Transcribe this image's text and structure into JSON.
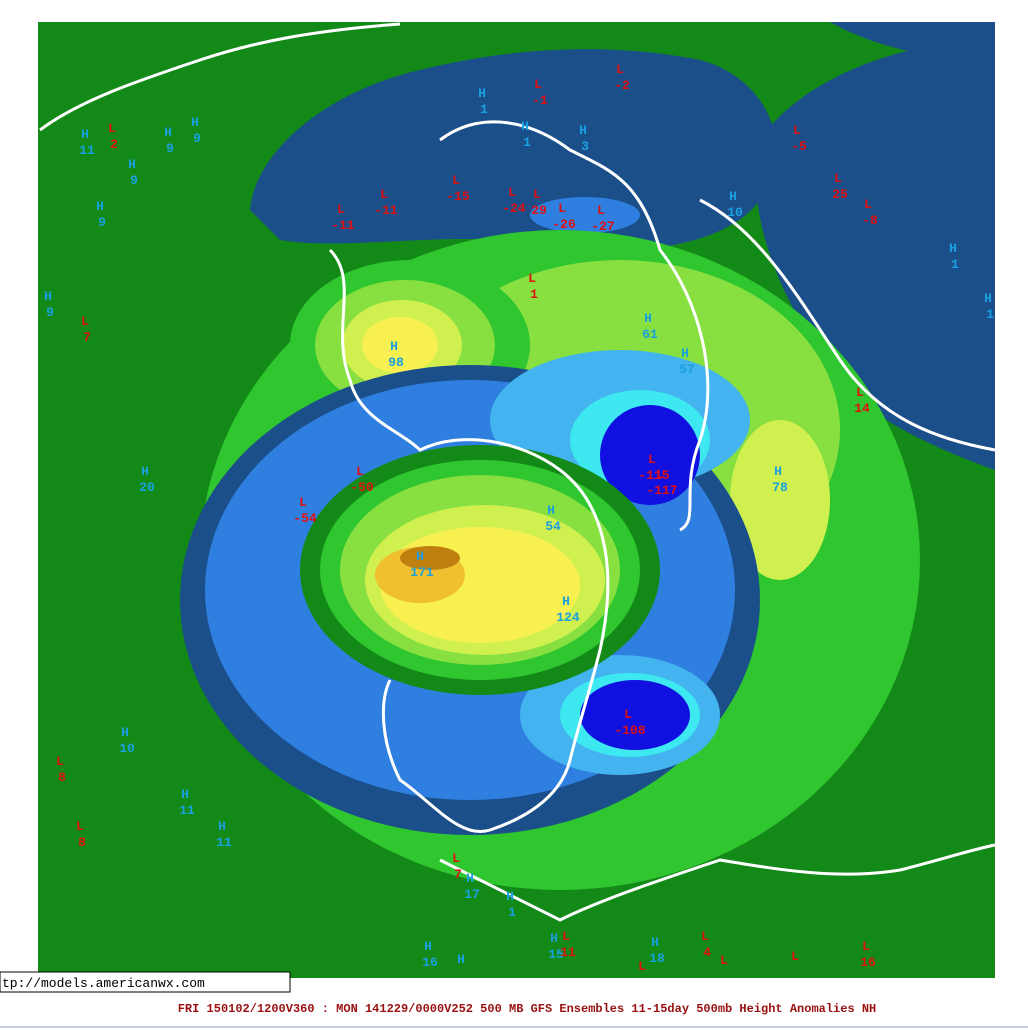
{
  "map": {
    "footer": "FRI 150102/1200V360 : MON 141229/0000V252  500 MB GFS Ensembles 11-15day 500mb Height Anomalies NH",
    "url": "tp://models.americanwx.com",
    "centers": [
      {
        "letter": "H",
        "value": 11
      },
      {
        "letter": "L",
        "value": 2
      },
      {
        "letter": "H",
        "value": 9
      },
      {
        "letter": "H",
        "value": 9
      },
      {
        "letter": "H",
        "value": 9
      },
      {
        "letter": "H",
        "value": 9
      },
      {
        "letter": "H",
        "value": 9
      },
      {
        "letter": "L",
        "value": 7
      },
      {
        "letter": "H",
        "value": 1
      },
      {
        "letter": "L",
        "value": -1
      },
      {
        "letter": "L",
        "value": -2
      },
      {
        "letter": "H",
        "value": 1
      },
      {
        "letter": "H",
        "value": 3
      },
      {
        "letter": "L",
        "value": -5
      },
      {
        "letter": "L",
        "value": -15
      },
      {
        "letter": "L",
        "value": -11
      },
      {
        "letter": "L",
        "value": -11
      },
      {
        "letter": "L",
        "value": -24
      },
      {
        "letter": "L",
        "value": 29
      },
      {
        "letter": "L",
        "value": -26
      },
      {
        "letter": "L",
        "value": -27
      },
      {
        "letter": "H",
        "value": 10
      },
      {
        "letter": "L",
        "value": 25
      },
      {
        "letter": "L",
        "value": -8
      },
      {
        "letter": "H",
        "value": 1
      },
      {
        "letter": "H",
        "value": 1
      },
      {
        "letter": "L",
        "value": 1
      },
      {
        "letter": "H",
        "value": 61
      },
      {
        "letter": "H",
        "value": 57
      },
      {
        "letter": "H",
        "value": 98
      },
      {
        "letter": "L",
        "value": 14
      },
      {
        "letter": "L",
        "value": -115
      },
      {
        "letter": "L",
        "value": -117
      },
      {
        "letter": "H",
        "value": 78
      },
      {
        "letter": "H",
        "value": 20
      },
      {
        "letter": "L",
        "value": -50
      },
      {
        "letter": "L",
        "value": -54
      },
      {
        "letter": "H",
        "value": 54
      },
      {
        "letter": "H",
        "value": 171
      },
      {
        "letter": "H",
        "value": 124
      },
      {
        "letter": "L",
        "value": -108
      },
      {
        "letter": "H",
        "value": 10
      },
      {
        "letter": "L",
        "value": 8
      },
      {
        "letter": "H",
        "value": 11
      },
      {
        "letter": "L",
        "value": 8
      },
      {
        "letter": "H",
        "value": 11
      },
      {
        "letter": "L",
        "value": 7
      },
      {
        "letter": "H",
        "value": 17
      },
      {
        "letter": "H",
        "value": 1
      },
      {
        "letter": "H",
        "value": 15
      },
      {
        "letter": "L",
        "value": 11
      },
      {
        "letter": "H",
        "value": 18
      },
      {
        "letter": "L",
        "value": 4
      },
      {
        "letter": "H",
        "value": 16
      },
      {
        "letter": "H"
      },
      {
        "letter": "L"
      },
      {
        "letter": "L"
      },
      {
        "letter": "L"
      },
      {
        "letter": "L",
        "value": 16
      }
    ]
  }
}
